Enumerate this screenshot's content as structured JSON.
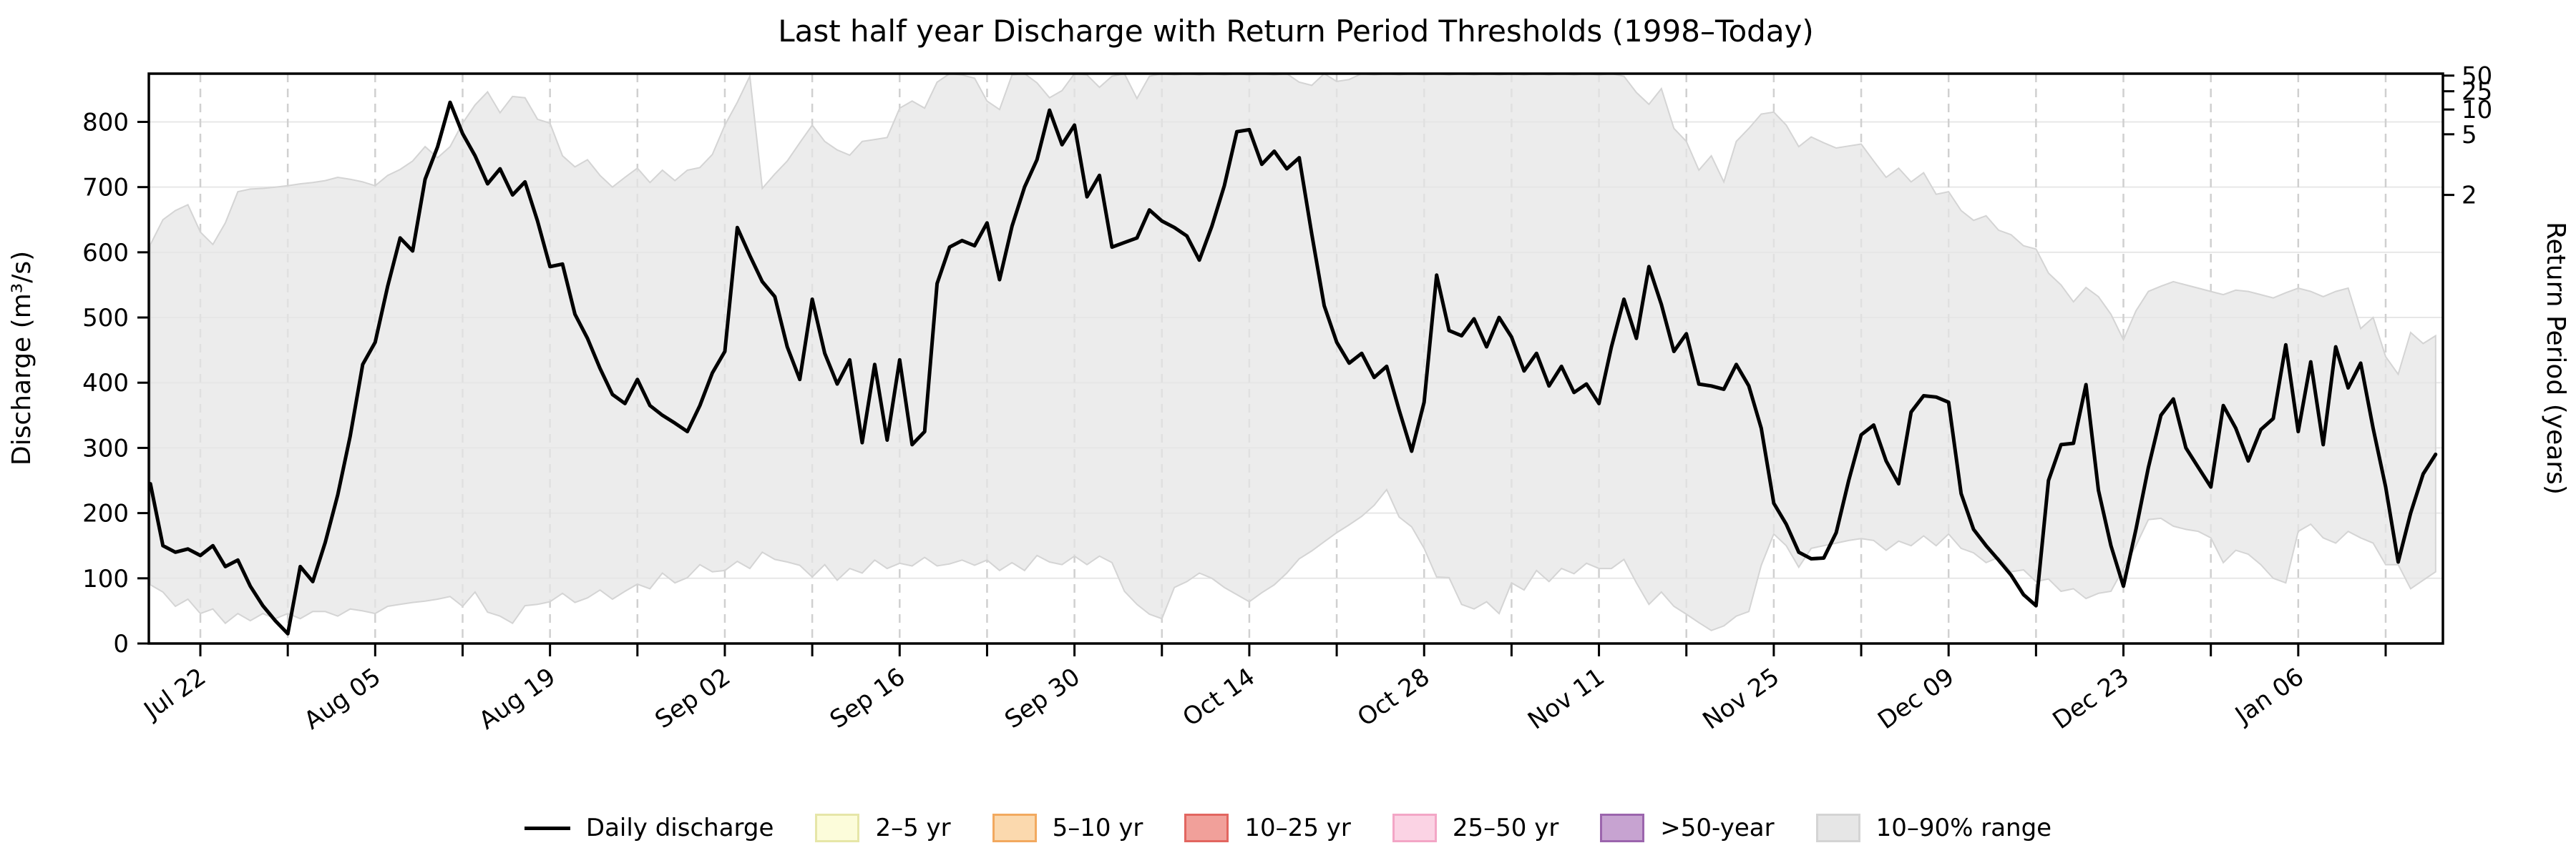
{
  "chart_data": {
    "type": "line",
    "title": "Last half year Discharge with Return Period Thresholds (1998–Today)",
    "ylabel_left": "Discharge (m³/s)",
    "ylabel_right": "Return Period (years)",
    "ylim": [
      0,
      874
    ],
    "grid": {
      "horizontal": "solid",
      "vertical": "dashed-weekly"
    },
    "x_tick_labels": [
      "Jul 22",
      "Aug 05",
      "Aug 19",
      "Sep 02",
      "Sep 16",
      "Sep 30",
      "Oct 14",
      "Oct 28",
      "Nov 11",
      "Nov 25",
      "Dec 09",
      "Dec 23",
      "Jan 06"
    ],
    "y_tick_labels_left": [
      "0",
      "100",
      "200",
      "300",
      "400",
      "500",
      "600",
      "700",
      "800"
    ],
    "y_ticks_left": [
      0,
      100,
      200,
      300,
      400,
      500,
      600,
      700,
      800
    ],
    "right_axis_ticks": [
      {
        "label": "2",
        "discharge_equivalent": 688
      },
      {
        "label": "5",
        "discharge_equivalent": 781
      },
      {
        "label": "10",
        "discharge_equivalent": 819
      },
      {
        "label": "25",
        "discharge_equivalent": 847
      },
      {
        "label": "50",
        "discharge_equivalent": 871
      }
    ],
    "series": [
      {
        "name": "Daily discharge",
        "color": "#000000",
        "start_label": "Jul 18",
        "values": [
          245,
          150,
          140,
          145,
          135,
          150,
          118,
          128,
          88,
          58,
          35,
          15,
          118,
          95,
          155,
          228,
          318,
          428,
          462,
          548,
          622,
          602,
          712,
          762,
          830,
          782,
          748,
          705,
          728,
          688,
          708,
          648,
          578,
          582,
          505,
          468,
          422,
          382,
          368,
          405,
          365,
          350,
          338,
          325,
          365,
          415,
          448,
          638,
          595,
          555,
          532,
          455,
          405,
          528,
          445,
          398,
          435,
          308,
          428,
          312,
          435,
          305,
          325,
          552,
          608,
          618,
          610,
          645,
          558,
          640,
          700,
          742,
          818,
          765,
          795,
          685,
          718,
          608,
          615,
          622,
          665,
          648,
          638,
          625,
          588,
          640,
          702,
          785,
          788,
          735,
          755,
          728,
          745,
          628,
          518,
          462,
          430,
          445,
          408,
          425,
          358,
          295,
          370,
          565,
          480,
          472,
          498,
          455,
          500,
          470,
          418,
          445,
          395,
          425,
          385,
          398,
          368,
          455,
          528,
          468,
          578,
          520,
          448,
          475,
          398,
          395,
          390,
          428,
          395,
          330,
          215,
          183,
          140,
          130,
          131,
          170,
          250,
          320,
          335,
          280,
          245,
          355,
          380,
          378,
          370,
          230,
          175,
          150,
          128,
          105,
          75,
          58,
          250,
          305,
          307,
          397,
          235,
          150,
          88,
          175,
          270,
          350,
          375,
          300,
          270,
          240,
          365,
          330,
          280,
          328,
          345,
          458,
          325,
          432,
          305,
          455,
          392,
          430,
          330,
          240,
          125,
          200,
          260,
          290
        ]
      },
      {
        "name": "10–90% range",
        "fill_color": "#e6e6e6",
        "edge_color": "#d4d4d4",
        "low": [
          90,
          79,
          57,
          68,
          46,
          53,
          31,
          46,
          35,
          46,
          38,
          46,
          38,
          49,
          49,
          42,
          53,
          50,
          46,
          57,
          60,
          63,
          65,
          68,
          72,
          57,
          79,
          48,
          42,
          31,
          58,
          60,
          64,
          77,
          63,
          70,
          82,
          68,
          80,
          91,
          84,
          108,
          93,
          101,
          121,
          110,
          112,
          126,
          115,
          140,
          129,
          125,
          120,
          102,
          121,
          97,
          115,
          108,
          128,
          115,
          123,
          119,
          132,
          119,
          122,
          128,
          120,
          128,
          112,
          124,
          112,
          135,
          125,
          121,
          134,
          121,
          134,
          124,
          80,
          60,
          45,
          38,
          86,
          95,
          108,
          100,
          86,
          75,
          64,
          78,
          90,
          108,
          130,
          142,
          156,
          170,
          182,
          195,
          212,
          236,
          194,
          179,
          146,
          102,
          101,
          60,
          53,
          64,
          46,
          93,
          82,
          112,
          95,
          115,
          107,
          123,
          115,
          115,
          129,
          93,
          60,
          79,
          57,
          45,
          32,
          20,
          27,
          42,
          49,
          120,
          168,
          150,
          117,
          146,
          150,
          154,
          158,
          161,
          158,
          143,
          157,
          150,
          165,
          150,
          168,
          146,
          139,
          124,
          132,
          110,
          113,
          95,
          99,
          80,
          84,
          69,
          77,
          80,
          115,
          150,
          190,
          192,
          180,
          175,
          172,
          162,
          124,
          143,
          137,
          121,
          100,
          93,
          172,
          183,
          162,
          154,
          172,
          162,
          154,
          121,
          121,
          84,
          97,
          110
        ],
        "high": [
          612,
          650,
          664,
          673,
          631,
          612,
          645,
          693,
          697,
          698,
          700,
          702,
          705,
          707,
          710,
          715,
          712,
          708,
          702,
          718,
          727,
          740,
          762,
          745,
          762,
          798,
          826,
          846,
          814,
          839,
          837,
          804,
          798,
          748,
          731,
          742,
          718,
          700,
          715,
          729,
          707,
          726,
          710,
          726,
          730,
          750,
          795,
          830,
          870,
          698,
          720,
          740,
          768,
          795,
          770,
          757,
          749,
          770,
          773,
          776,
          821,
          832,
          821,
          861,
          875,
          872,
          867,
          832,
          819,
          872,
          875,
          860,
          837,
          848,
          875,
          872,
          853,
          870,
          875,
          836,
          870,
          875,
          872,
          875,
          872,
          875,
          872,
          875,
          872,
          875,
          872,
          875,
          861,
          856,
          875,
          862,
          865,
          875,
          872,
          875,
          872,
          875,
          872,
          875,
          872,
          875,
          872,
          875,
          872,
          875,
          872,
          875,
          872,
          875,
          872,
          875,
          872,
          875,
          870,
          845,
          827,
          851,
          790,
          770,
          726,
          748,
          708,
          770,
          790,
          812,
          815,
          795,
          762,
          777,
          768,
          760,
          763,
          766,
          740,
          715,
          729,
          708,
          722,
          689,
          693,
          664,
          649,
          656,
          634,
          627,
          610,
          605,
          568,
          550,
          524,
          546,
          532,
          505,
          466,
          510,
          540,
          548,
          555,
          550,
          545,
          540,
          535,
          542,
          540,
          535,
          530,
          538,
          545,
          540,
          532,
          540,
          545,
          483,
          500,
          440,
          413,
          477,
          460,
          472
        ]
      }
    ],
    "legend": [
      {
        "label": "Daily discharge",
        "type": "line",
        "color": "#000000"
      },
      {
        "label": "2–5 yr",
        "type": "box",
        "fill": "#fcfcda",
        "edge": "#e6e6a8"
      },
      {
        "label": "5–10 yr",
        "type": "box",
        "fill": "#fbd9ae",
        "edge": "#f2a95f"
      },
      {
        "label": "10–25 yr",
        "type": "box",
        "fill": "#f1a09a",
        "edge": "#e26660"
      },
      {
        "label": "25–50 yr",
        "type": "box",
        "fill": "#fbd3e4",
        "edge": "#f3a6c6"
      },
      {
        "label": ">50-year",
        "type": "box",
        "fill": "#c7a3d1",
        "edge": "#9b65ad"
      },
      {
        "label": "10–90% range",
        "type": "box",
        "fill": "#e6e6e6",
        "edge": "#d4d4d4"
      }
    ],
    "colors": {
      "line": "#000000",
      "band_fill": "#e6e6e6",
      "band_edge": "#d4d4d4",
      "h_grid": "#e7e7e7",
      "v_grid": "#d0d0d0",
      "spine": "#000000"
    }
  }
}
